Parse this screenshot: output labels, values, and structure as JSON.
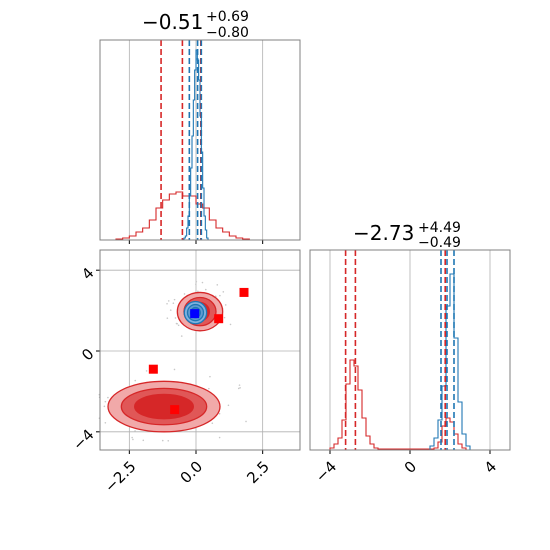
{
  "chart_data": [
    {
      "type": "histogram",
      "panel": "marginal-x",
      "title": {
        "value": "−0.51",
        "upper": "+0.69",
        "lower": "−0.80"
      },
      "xlim": [
        -3.6,
        3.9
      ],
      "grid": true,
      "x_ticks": [
        -2.5,
        0.0,
        2.5
      ],
      "x_tick_labels": [],
      "red_hist": {
        "bins": [
          -3.0,
          -2.75,
          -2.5,
          -2.25,
          -2.0,
          -1.75,
          -1.5,
          -1.25,
          -1.0,
          -0.75,
          -0.5,
          -0.25,
          0.0,
          0.25,
          0.5,
          0.75,
          1.0,
          1.25,
          1.5,
          1.75
        ],
        "counts": [
          0.005,
          0.01,
          0.02,
          0.04,
          0.06,
          0.1,
          0.16,
          0.2,
          0.23,
          0.24,
          0.22,
          0.22,
          0.18,
          0.16,
          0.1,
          0.06,
          0.04,
          0.02,
          0.01,
          0.005
        ],
        "color": "#d62728"
      },
      "blue_hist": {
        "bins": [
          -0.5,
          -0.45,
          -0.4,
          -0.35,
          -0.3,
          -0.25,
          -0.2,
          -0.15,
          -0.1,
          -0.05,
          0.0,
          0.05,
          0.1,
          0.15,
          0.2,
          0.25,
          0.3,
          0.35,
          0.4
        ],
        "counts": [
          0.005,
          0.01,
          0.02,
          0.06,
          0.12,
          0.22,
          0.36,
          0.52,
          0.7,
          0.85,
          0.95,
          0.9,
          0.8,
          0.62,
          0.44,
          0.26,
          0.12,
          0.05,
          0.01
        ],
        "color": "#1f77b4"
      },
      "red_quantiles": [
        -1.31,
        -0.51,
        0.18
      ],
      "blue_quantiles": [
        -0.25,
        0.06,
        0.2
      ],
      "ylim": [
        0,
        1.0
      ]
    },
    {
      "type": "histogram",
      "panel": "marginal-y",
      "title": {
        "value": "−2.73",
        "upper": "+4.49",
        "lower": "−0.49"
      },
      "xlim": [
        -5.0,
        5.0
      ],
      "grid": true,
      "x_ticks": [
        -4,
        0,
        4
      ],
      "x_tick_labels": [
        "−4",
        "0",
        "4"
      ],
      "red_hist": {
        "bins": [
          -4.0,
          -3.8,
          -3.6,
          -3.4,
          -3.2,
          -3.0,
          -2.8,
          -2.6,
          -2.4,
          -2.2,
          -2.0,
          -1.8,
          -1.6,
          1.0,
          1.2,
          1.4,
          1.6,
          1.8,
          2.0,
          2.2,
          2.4,
          2.6
        ],
        "counts": [
          0.01,
          0.03,
          0.06,
          0.15,
          0.33,
          0.45,
          0.42,
          0.3,
          0.16,
          0.07,
          0.03,
          0.01,
          0.005,
          0.005,
          0.01,
          0.04,
          0.12,
          0.16,
          0.14,
          0.08,
          0.03,
          0.01
        ],
        "color": "#d62728"
      },
      "blue_hist": {
        "bins": [
          1.0,
          1.2,
          1.4,
          1.6,
          1.8,
          2.0,
          2.2,
          2.4,
          2.6,
          2.8
        ],
        "counts": [
          0.02,
          0.06,
          0.15,
          0.32,
          0.72,
          0.88,
          0.56,
          0.24,
          0.08,
          0.02
        ],
        "color": "#1f77b4"
      },
      "red_quantiles": [
        -3.22,
        -2.73,
        1.76
      ],
      "blue_quantiles": [
        1.55,
        1.85,
        2.2
      ],
      "ylim": [
        0,
        1.0
      ]
    },
    {
      "type": "scatter",
      "panel": "joint",
      "xlim": [
        -3.6,
        3.9
      ],
      "ylim": [
        -4.9,
        5.0
      ],
      "grid": true,
      "x_ticks": [
        -2.5,
        0.0,
        2.5
      ],
      "x_tick_labels": [
        "−2.5",
        "0.0",
        "2.5"
      ],
      "y_ticks": [
        -4,
        0,
        4
      ],
      "y_tick_labels": [
        "−4",
        "0",
        "4"
      ],
      "red_squares": [
        [
          -1.6,
          -0.9
        ],
        [
          -0.8,
          -2.9
        ],
        [
          0.85,
          1.6
        ],
        [
          1.8,
          2.9
        ]
      ],
      "blue_square": [
        -0.05,
        1.85
      ],
      "red_contours_upper": {
        "cx": 0.15,
        "cy": 1.95,
        "rx": [
          0.35,
          0.6,
          0.85
        ],
        "ry": [
          0.45,
          0.7,
          0.95
        ]
      },
      "red_contours_lower": {
        "cx": -1.2,
        "cy": -2.75,
        "rx": [
          1.1,
          1.6,
          2.1
        ],
        "ry": [
          0.6,
          0.9,
          1.25
        ]
      },
      "blue_contours": {
        "cx": -0.02,
        "cy": 1.9,
        "rx": [
          0.18,
          0.3,
          0.42
        ],
        "ry": [
          0.25,
          0.4,
          0.55
        ]
      },
      "colors": {
        "red": "#d62728",
        "red_fill": "#f1a9a9",
        "red_mid": "#e05757",
        "blue": "#1f77b4",
        "blue_fill": "#7fb2de"
      }
    }
  ]
}
